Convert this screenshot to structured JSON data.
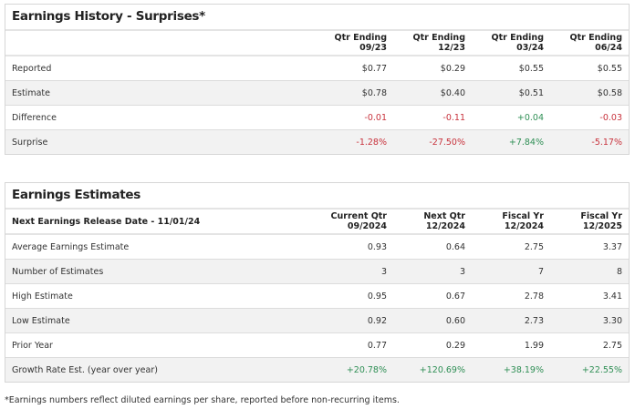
{
  "history": {
    "title": "Earnings History - Surprises*",
    "columns": [
      [
        "Qtr Ending",
        "09/23"
      ],
      [
        "Qtr Ending",
        "12/23"
      ],
      [
        "Qtr Ending",
        "03/24"
      ],
      [
        "Qtr Ending",
        "06/24"
      ]
    ],
    "rows": [
      {
        "label": "Reported",
        "values": [
          "$0.77",
          "$0.29",
          "$0.55",
          "$0.55"
        ]
      },
      {
        "label": "Estimate",
        "values": [
          "$0.78",
          "$0.40",
          "$0.51",
          "$0.58"
        ]
      },
      {
        "label": "Difference",
        "values": [
          "-0.01",
          "-0.11",
          "+0.04",
          "-0.03"
        ]
      },
      {
        "label": "Surprise",
        "values": [
          "-1.28%",
          "-27.50%",
          "+7.84%",
          "-5.17%"
        ]
      }
    ]
  },
  "estimates": {
    "title": "Earnings Estimates",
    "header_label": "Next Earnings Release Date - 11/01/24",
    "columns": [
      [
        "Current Qtr",
        "09/2024"
      ],
      [
        "Next Qtr",
        "12/2024"
      ],
      [
        "Fiscal Yr",
        "12/2024"
      ],
      [
        "Fiscal Yr",
        "12/2025"
      ]
    ],
    "rows": [
      {
        "label": "Average Earnings Estimate",
        "values": [
          "0.93",
          "0.64",
          "2.75",
          "3.37"
        ]
      },
      {
        "label": "Number of Estimates",
        "values": [
          "3",
          "3",
          "7",
          "8"
        ]
      },
      {
        "label": "High Estimate",
        "values": [
          "0.95",
          "0.67",
          "2.78",
          "3.41"
        ]
      },
      {
        "label": "Low Estimate",
        "values": [
          "0.92",
          "0.60",
          "2.73",
          "3.30"
        ]
      },
      {
        "label": "Prior Year",
        "values": [
          "0.77",
          "0.29",
          "1.99",
          "2.75"
        ]
      },
      {
        "label": "Growth Rate Est. (year over year)",
        "values": [
          "+20.78%",
          "+120.69%",
          "+38.19%",
          "+22.55%"
        ]
      }
    ]
  },
  "colors": {
    "negative": "#c8323c",
    "positive": "#2f8f55"
  },
  "footnote": "*Earnings numbers reflect diluted earnings per share, reported before non-recurring items."
}
